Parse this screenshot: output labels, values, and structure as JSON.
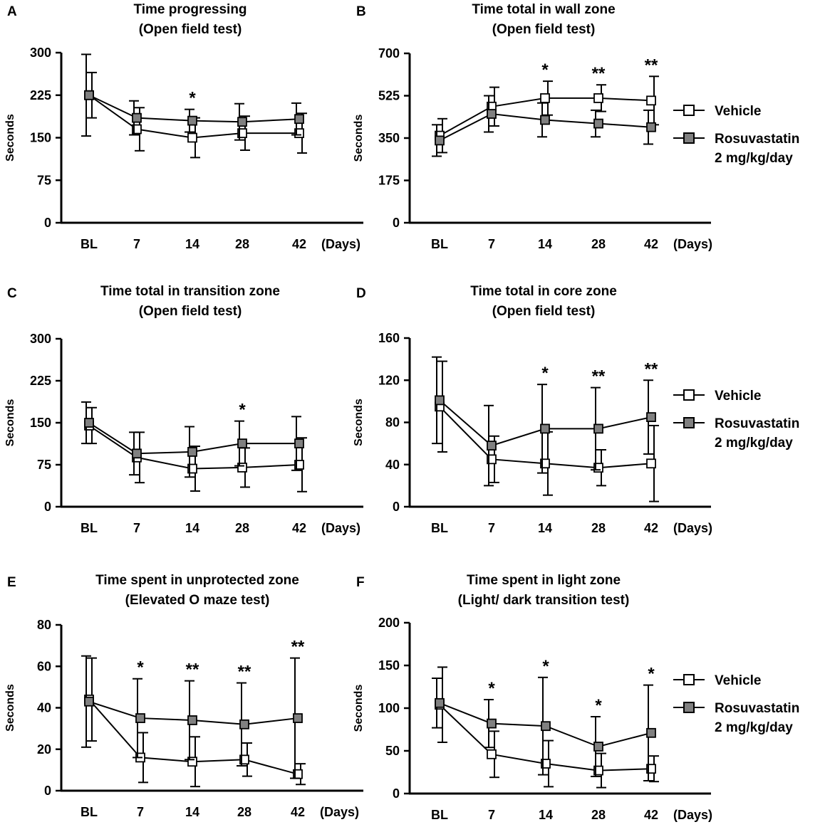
{
  "figure": {
    "series_names": [
      "Vehicle",
      "Rosuvastatin"
    ],
    "legend_lines": [
      "Vehicle",
      "Rosuvastatin",
      "2 mg/kg/day"
    ],
    "days_label": "(Days)",
    "colors": {
      "vehicle_fill": "#ffffff",
      "rosuvastatin_fill": "#808080",
      "line": "#000000"
    }
  },
  "chart_data": [
    {
      "id": "A",
      "type": "line",
      "title": [
        "Time progressing",
        "(Open field test)"
      ],
      "ylabel": "Seconds",
      "categories": [
        "BL",
        "7",
        "14",
        "28",
        "42"
      ],
      "ylim": [
        0,
        300
      ],
      "yticks": [
        "0",
        "75",
        "150",
        "225",
        "300"
      ],
      "series": [
        {
          "name": "Vehicle",
          "values": [
            225,
            165,
            150,
            158,
            158
          ],
          "err": [
            40,
            38,
            35,
            30,
            35
          ]
        },
        {
          "name": "Rosuvastatin",
          "values": [
            225,
            185,
            180,
            178,
            183
          ],
          "err": [
            72,
            30,
            20,
            32,
            28
          ]
        }
      ],
      "significance": [
        "",
        "",
        "*",
        "",
        ""
      ],
      "legend": false
    },
    {
      "id": "B",
      "type": "line",
      "title": [
        "Time total in wall zone",
        "(Open field test)"
      ],
      "ylabel": "Seconds",
      "categories": [
        "BL",
        "7",
        "14",
        "28",
        "42"
      ],
      "ylim": [
        0,
        700
      ],
      "yticks": [
        "0",
        "175",
        "350",
        "525",
        "700"
      ],
      "series": [
        {
          "name": "Vehicle",
          "values": [
            360,
            480,
            515,
            515,
            505
          ],
          "err": [
            70,
            80,
            70,
            55,
            100
          ]
        },
        {
          "name": "Rosuvastatin",
          "values": [
            340,
            450,
            425,
            410,
            395
          ],
          "err": [
            65,
            75,
            70,
            55,
            70
          ]
        }
      ],
      "significance": [
        "",
        "",
        "*",
        "**",
        "**"
      ],
      "legend": true
    },
    {
      "id": "C",
      "type": "line",
      "title": [
        "Time total in transition zone",
        "(Open field test)"
      ],
      "ylabel": "Seconds",
      "categories": [
        "BL",
        "7",
        "14",
        "28",
        "42"
      ],
      "ylim": [
        0,
        300
      ],
      "yticks": [
        "0",
        "75",
        "150",
        "225",
        "300"
      ],
      "series": [
        {
          "name": "Vehicle",
          "values": [
            145,
            88,
            68,
            70,
            75
          ],
          "err": [
            32,
            45,
            40,
            35,
            48
          ]
        },
        {
          "name": "Rosuvastatin",
          "values": [
            150,
            95,
            98,
            113,
            113
          ],
          "err": [
            37,
            38,
            45,
            40,
            48
          ]
        }
      ],
      "significance": [
        "",
        "",
        "",
        "*",
        ""
      ],
      "legend": false
    },
    {
      "id": "D",
      "type": "line",
      "title": [
        "Time total in core zone",
        "(Open field test)"
      ],
      "ylabel": "Seconds",
      "categories": [
        "BL",
        "7",
        "14",
        "28",
        "42"
      ],
      "ylim": [
        0,
        160
      ],
      "yticks": [
        "0",
        "40",
        "80",
        "120",
        "160"
      ],
      "series": [
        {
          "name": "Vehicle",
          "values": [
            95,
            45,
            41,
            37,
            41
          ],
          "err": [
            43,
            22,
            30,
            17,
            36
          ]
        },
        {
          "name": "Rosuvastatin",
          "values": [
            101,
            58,
            74,
            74,
            85
          ],
          "err": [
            41,
            38,
            42,
            39,
            35
          ]
        }
      ],
      "significance": [
        "",
        "",
        "*",
        "**",
        "**"
      ],
      "legend": true
    },
    {
      "id": "E",
      "type": "line",
      "title": [
        "Time spent in unprotected zone",
        "(Elevated O maze test)"
      ],
      "ylabel": "Seconds",
      "categories": [
        "BL",
        "7",
        "14",
        "28",
        "42"
      ],
      "ylim": [
        0,
        80
      ],
      "yticks": [
        "0",
        "20",
        "40",
        "60",
        "80"
      ],
      "series": [
        {
          "name": "Vehicle",
          "values": [
            44,
            16,
            14,
            15,
            8
          ],
          "err": [
            20,
            12,
            12,
            8,
            5
          ]
        },
        {
          "name": "Rosuvastatin",
          "values": [
            43,
            35,
            34,
            32,
            35
          ],
          "err": [
            22,
            19,
            19,
            20,
            29
          ]
        }
      ],
      "significance": [
        "",
        "*",
        "**",
        "**",
        "**"
      ],
      "legend": false
    },
    {
      "id": "F",
      "type": "line",
      "title": [
        "Time spent in light zone",
        "(Light/ dark transition test)"
      ],
      "ylabel": "Seconds",
      "categories": [
        "BL",
        "7",
        "14",
        "28",
        "42"
      ],
      "ylim": [
        0,
        200
      ],
      "yticks": [
        "0",
        "50",
        "100",
        "150",
        "200"
      ],
      "series": [
        {
          "name": "Vehicle",
          "values": [
            104,
            46,
            35,
            27,
            29
          ],
          "err": [
            44,
            27,
            27,
            20,
            15
          ]
        },
        {
          "name": "Rosuvastatin",
          "values": [
            106,
            82,
            79,
            55,
            71
          ],
          "err": [
            29,
            28,
            57,
            35,
            56
          ]
        }
      ],
      "significance": [
        "",
        "*",
        "*",
        "*",
        "*"
      ],
      "legend": true
    }
  ]
}
